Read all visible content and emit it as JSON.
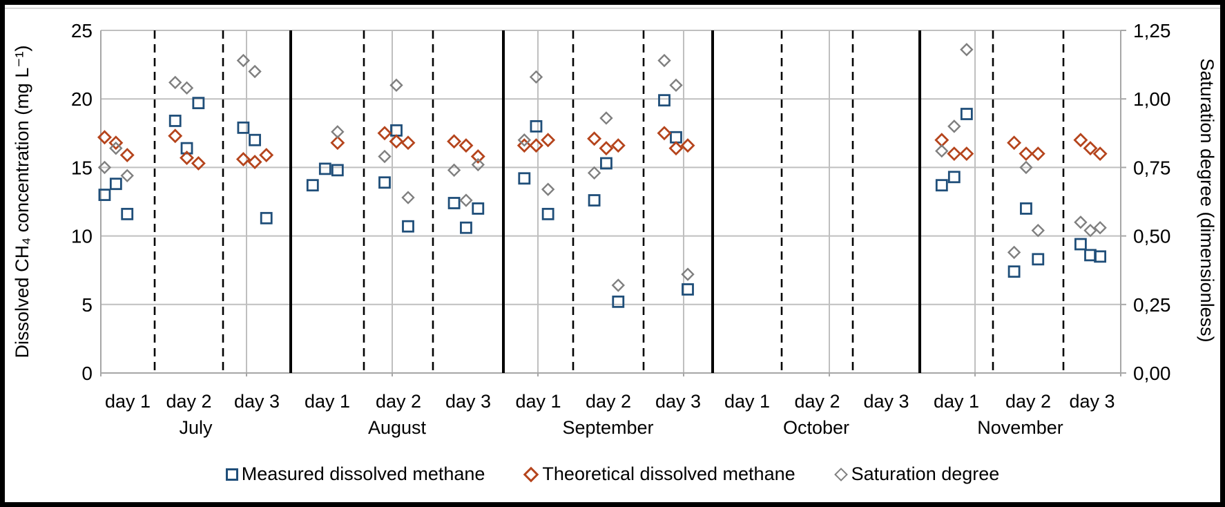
{
  "figure": {
    "background": "#ffffff",
    "frame_color": "#000000"
  },
  "chart_data": {
    "type": "scatter",
    "title": "",
    "grid": true,
    "left_axis": {
      "label": "Dissolved CH₄ concentration (mg L⁻¹)",
      "ticks": [
        "0",
        "5",
        "10",
        "15",
        "20",
        "25"
      ],
      "range": [
        0,
        25
      ]
    },
    "right_axis": {
      "label": "Saturation degree (dimensionless)",
      "ticks": [
        "0,00",
        "0,25",
        "0,50",
        "0,75",
        "1,00",
        "1,25"
      ],
      "range": [
        0,
        1.25
      ]
    },
    "series": [
      {
        "name": "Measured dissolved methane",
        "marker": "square",
        "color": "#1f4e79",
        "axis": "left"
      },
      {
        "name": "Theoretical dissolved methane",
        "marker": "diamond",
        "color": "#b5441c",
        "axis": "left"
      },
      {
        "name": "Saturation degree",
        "marker": "diamond",
        "color": "#7f7f7f",
        "axis": "right"
      }
    ],
    "colors": {
      "gridline": "#bfbfbf",
      "axis_line": "#a6a6a6",
      "day_separator": "#000000",
      "month_separator": "#000000"
    },
    "months": [
      {
        "name": "July",
        "days": [
          {
            "label": "day 1",
            "samples": [
              {
                "measured": 13.0,
                "theoretical": 17.2,
                "saturation": 0.75
              },
              {
                "measured": 13.8,
                "theoretical": 16.8,
                "saturation": 0.82
              },
              {
                "measured": 11.6,
                "theoretical": 15.9,
                "saturation": 0.72
              }
            ]
          },
          {
            "label": "day 2",
            "samples": [
              {
                "measured": 18.4,
                "theoretical": 17.3,
                "saturation": 1.06
              },
              {
                "measured": 16.4,
                "theoretical": 15.7,
                "saturation": 1.04
              },
              {
                "measured": 19.7,
                "theoretical": 15.3,
                "saturation": null
              }
            ]
          },
          {
            "label": "day 3",
            "samples": [
              {
                "measured": 17.9,
                "theoretical": 15.6,
                "saturation": 1.14
              },
              {
                "measured": 17.0,
                "theoretical": 15.4,
                "saturation": 1.1
              },
              {
                "measured": 11.3,
                "theoretical": 15.9,
                "saturation": null
              }
            ]
          }
        ]
      },
      {
        "name": "August",
        "days": [
          {
            "label": "day 1",
            "samples": [
              {
                "measured": 13.7,
                "theoretical": null,
                "saturation": null
              },
              {
                "measured": 14.9,
                "theoretical": null,
                "saturation": null
              },
              {
                "measured": 14.8,
                "theoretical": 16.8,
                "saturation": 0.88
              }
            ]
          },
          {
            "label": "day 2",
            "samples": [
              {
                "measured": 13.9,
                "theoretical": 17.5,
                "saturation": 0.79
              },
              {
                "measured": 17.7,
                "theoretical": 16.9,
                "saturation": 1.05
              },
              {
                "measured": 10.7,
                "theoretical": 16.8,
                "saturation": 0.64
              }
            ]
          },
          {
            "label": "day 3",
            "samples": [
              {
                "measured": 12.4,
                "theoretical": 16.9,
                "saturation": 0.74
              },
              {
                "measured": 10.6,
                "theoretical": 16.6,
                "saturation": 0.63
              },
              {
                "measured": 12.0,
                "theoretical": 15.8,
                "saturation": 0.76
              }
            ]
          }
        ]
      },
      {
        "name": "September",
        "days": [
          {
            "label": "day 1",
            "samples": [
              {
                "measured": 14.2,
                "theoretical": 16.6,
                "saturation": 0.85
              },
              {
                "measured": 18.0,
                "theoretical": 16.6,
                "saturation": 1.08
              },
              {
                "measured": 11.6,
                "theoretical": 17.0,
                "saturation": 0.67
              }
            ]
          },
          {
            "label": "day 2",
            "samples": [
              {
                "measured": 12.6,
                "theoretical": 17.1,
                "saturation": 0.73
              },
              {
                "measured": 15.3,
                "theoretical": 16.4,
                "saturation": 0.93
              },
              {
                "measured": 5.2,
                "theoretical": 16.6,
                "saturation": 0.32
              }
            ]
          },
          {
            "label": "day 3",
            "samples": [
              {
                "measured": 19.9,
                "theoretical": 17.5,
                "saturation": 1.14
              },
              {
                "measured": 17.2,
                "theoretical": 16.4,
                "saturation": 1.05
              },
              {
                "measured": 6.1,
                "theoretical": 16.6,
                "saturation": 0.36
              }
            ]
          }
        ]
      },
      {
        "name": "October",
        "days": [
          {
            "label": "day 1",
            "samples": []
          },
          {
            "label": "day 2",
            "samples": []
          },
          {
            "label": "day 3",
            "samples": []
          }
        ]
      },
      {
        "name": "November",
        "days": [
          {
            "label": "day 1",
            "samples": [
              {
                "measured": 13.7,
                "theoretical": 17.0,
                "saturation": 0.81
              },
              {
                "measured": 14.3,
                "theoretical": 16.0,
                "saturation": 0.9
              },
              {
                "measured": 18.9,
                "theoretical": 16.0,
                "saturation": 1.18
              }
            ]
          },
          {
            "label": "day 2",
            "samples": [
              {
                "measured": 7.4,
                "theoretical": 16.8,
                "saturation": 0.44
              },
              {
                "measured": 12.0,
                "theoretical": 16.0,
                "saturation": 0.75
              },
              {
                "measured": 8.3,
                "theoretical": 16.0,
                "saturation": 0.52
              }
            ]
          },
          {
            "label": "day 3",
            "samples": [
              {
                "measured": 9.4,
                "theoretical": 17.0,
                "saturation": 0.55
              },
              {
                "measured": 8.6,
                "theoretical": 16.4,
                "saturation": 0.52
              },
              {
                "measured": 8.5,
                "theoretical": 16.0,
                "saturation": 0.53
              }
            ]
          }
        ]
      }
    ]
  },
  "legend": {
    "items": [
      {
        "label": "Measured dissolved methane"
      },
      {
        "label": "Theoretical dissolved methane"
      },
      {
        "label": "Saturation degree"
      }
    ]
  }
}
